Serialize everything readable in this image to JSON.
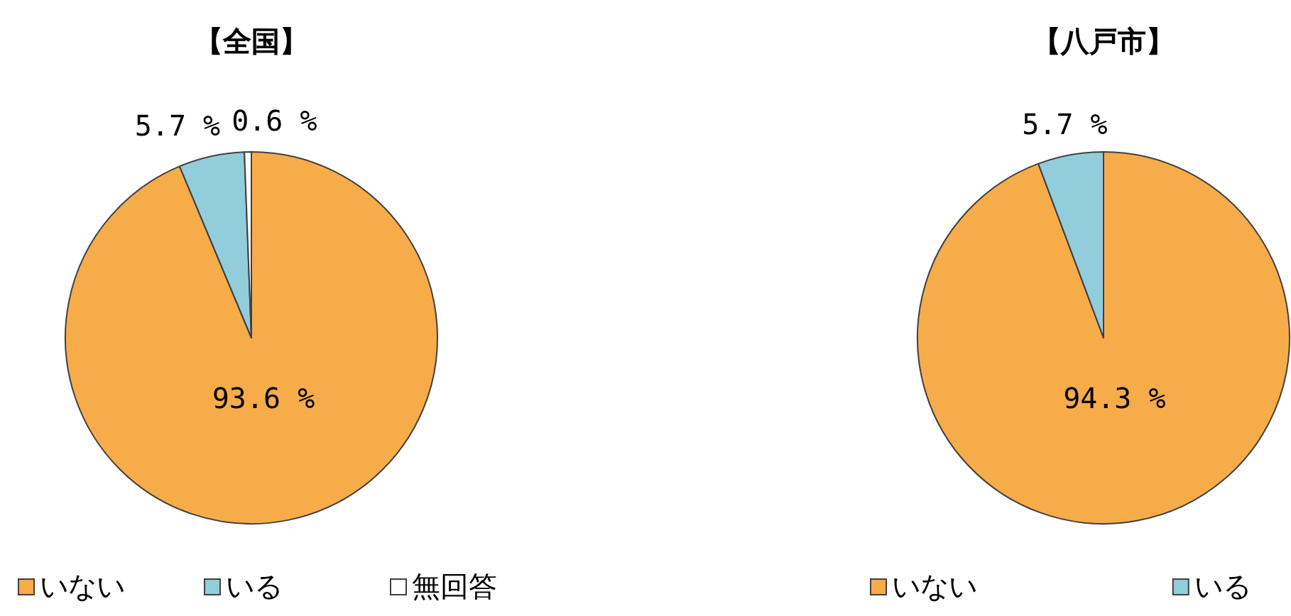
{
  "chart_data": [
    {
      "type": "pie",
      "title": "【全国】",
      "categories": [
        "いない",
        "いる",
        "無回答"
      ],
      "values": [
        93.6,
        5.7,
        0.6
      ],
      "colors": [
        "#f7ac4a",
        "#92cddc",
        "#ffffff"
      ],
      "value_labels": [
        "93.6 %",
        "5.7 %",
        "0.6 %"
      ],
      "legend": "bottom"
    },
    {
      "type": "pie",
      "title": "【八戸市】",
      "categories": [
        "いない",
        "いる"
      ],
      "values": [
        94.3,
        5.7
      ],
      "colors": [
        "#f7ac4a",
        "#92cddc"
      ],
      "value_labels": [
        "94.3 %",
        "5.7 %"
      ],
      "legend": "bottom"
    }
  ]
}
